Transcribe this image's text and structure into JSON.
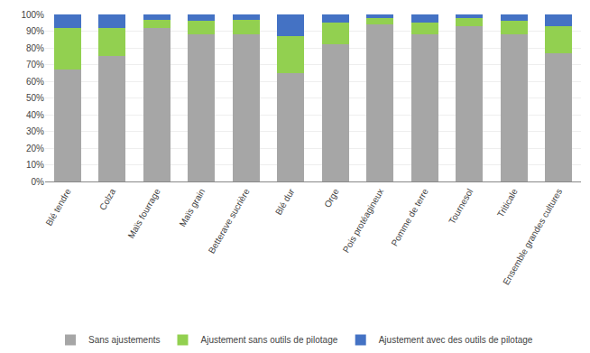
{
  "chart_data": {
    "type": "bar",
    "stacked": true,
    "categories": [
      "Blé tendre",
      "Colza",
      "Maïs fourrage",
      "Maïs grain",
      "Betterave sucrière",
      "Blé dur",
      "Orge",
      "Pois protéagineux",
      "Pomme de terre",
      "Tournesol",
      "Triticale",
      "Ensemble grandes cultures"
    ],
    "series": [
      {
        "name": "Sans ajustements",
        "color": "#a6a6a6",
        "values": [
          67,
          75,
          92,
          88,
          88,
          65,
          82,
          94,
          88,
          93,
          88,
          77
        ]
      },
      {
        "name": "Ajustement sans outils de pilotage",
        "color": "#92d050",
        "values": [
          25,
          17,
          5,
          8,
          9,
          22,
          13,
          4,
          7,
          5,
          8,
          16
        ]
      },
      {
        "name": "Ajustement avec des outils de pilotage",
        "color": "#4472c4",
        "values": [
          8,
          8,
          3,
          4,
          3,
          13,
          5,
          2,
          5,
          2,
          4,
          7
        ]
      }
    ],
    "ylim": [
      0,
      100
    ],
    "yticks": [
      {
        "value": 0,
        "label": "0%"
      },
      {
        "value": 10,
        "label": "10%"
      },
      {
        "value": 20,
        "label": "20%"
      },
      {
        "value": 30,
        "label": "30%"
      },
      {
        "value": 40,
        "label": "40%"
      },
      {
        "value": 50,
        "label": "50%"
      },
      {
        "value": 60,
        "label": "60%"
      },
      {
        "value": 70,
        "label": "70%"
      },
      {
        "value": 80,
        "label": "80%"
      },
      {
        "value": 90,
        "label": "90%"
      },
      {
        "value": 100,
        "label": "100%"
      }
    ],
    "grid": true,
    "legend": "bottom"
  }
}
